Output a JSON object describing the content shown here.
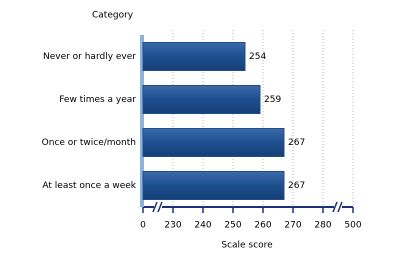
{
  "chart_data": {
    "type": "bar",
    "orientation": "horizontal",
    "y_label": "Category",
    "x_label": "Scale score",
    "categories": [
      "Never or hardly ever",
      "Few times a year",
      "Once or twice/month",
      "At least once a week"
    ],
    "values": [
      254,
      259,
      267,
      267
    ],
    "color": "#1d4f8f",
    "xlim": [
      0,
      500
    ],
    "xticks": [
      0,
      230,
      240,
      250,
      260,
      270,
      280,
      500
    ],
    "axis_break": true,
    "grid": true
  }
}
